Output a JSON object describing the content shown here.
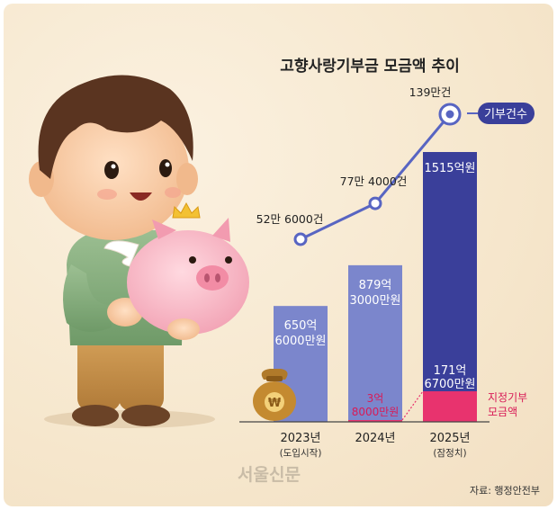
{
  "chart_data": {
    "type": "bar",
    "title": "고향사랑기부금 모금액 추이",
    "categories": [
      "2023년",
      "2024년",
      "2025년"
    ],
    "category_notes": [
      "(도입시작)",
      "",
      "(잠정치)"
    ],
    "series": [
      {
        "name": "",
        "unit": "억원",
        "values": [
          650.6,
          879.3,
          1515
        ],
        "labels": [
          [
            "650억",
            "6000만원"
          ],
          [
            "879억",
            "3000만원"
          ],
          [
            "1515억원"
          ]
        ],
        "color": "#7b86cc"
      },
      {
        "name": "지정기부 모금액",
        "unit": "억원",
        "values": [
          0,
          3.8,
          171.67
        ],
        "labels": [
          [],
          [
            "3억",
            "8000만원"
          ],
          [
            "171억",
            "6700만원"
          ]
        ],
        "color": "#e8336e"
      },
      {
        "name": "기부건수",
        "unit": "만건",
        "type": "line",
        "values": [
          52.6,
          77.4,
          139
        ],
        "labels": [
          "52만 6000건",
          "77만 4000건",
          "139만건"
        ],
        "color": "#5865c2"
      }
    ],
    "legend_line": "기부건수",
    "legend_bar": [
      "지정기부",
      "모금액"
    ],
    "source": "자료: 행정안전부",
    "watermark": "서울신문"
  },
  "colors": {
    "bar_2023_2024": "#7b86cc",
    "bar_2025": "#3a3f9a",
    "designated": "#e8336e",
    "line": "#5865c2",
    "background": "#f6e7cd"
  },
  "illustration": {
    "character": "boy-with-piggy-bank",
    "icon": "money-bag-won-icon"
  }
}
